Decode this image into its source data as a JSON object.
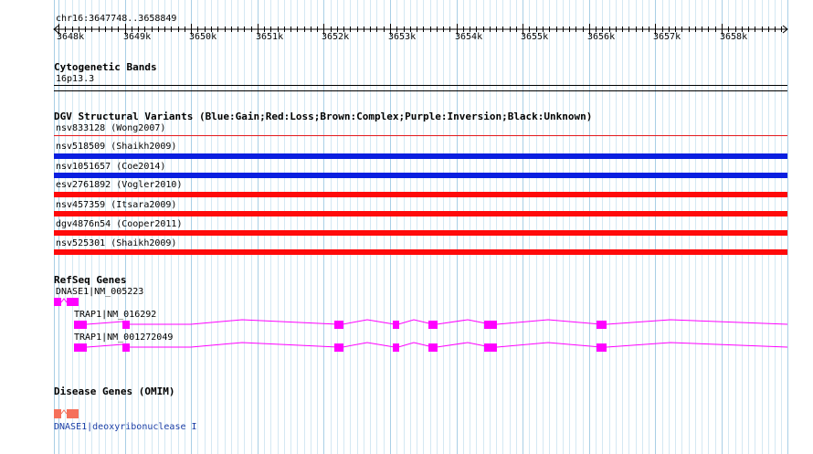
{
  "region": "chr16:3647748..3658849",
  "ruler": {
    "ticks": [
      "3648k",
      "3649k",
      "3650k",
      "3651k",
      "3652k",
      "3653k",
      "3654k",
      "3655k",
      "3656k",
      "3657k",
      "3658k"
    ]
  },
  "cytoband": {
    "title": "Cytogenetic Bands",
    "band": "16p13.3"
  },
  "dgv": {
    "title": "DGV Structural Variants (Blue:Gain;Red:Loss;Brown:Complex;Purple:Inversion;Black:Unknown)",
    "variants": [
      {
        "label": "nsv833128 (Wong2007)",
        "type": "Loss",
        "color": "#e31a1c",
        "thin": true
      },
      {
        "label": "nsv518509 (Shaikh2009)",
        "type": "Gain",
        "color": "#0a1fe0",
        "thin": false
      },
      {
        "label": "nsv1051657 (Coe2014)",
        "type": "Gain",
        "color": "#0a1fe0",
        "thin": false
      },
      {
        "label": "esv2761892 (Vogler2010)",
        "type": "Loss",
        "color": "#ff0a0a",
        "thin": false
      },
      {
        "label": "nsv457359 (Itsara2009)",
        "type": "Loss",
        "color": "#ff0a0a",
        "thin": false
      },
      {
        "label": "dgv4876n54 (Cooper2011)",
        "type": "Loss",
        "color": "#ff0a0a",
        "thin": false
      },
      {
        "label": "nsv525301 (Shaikh2009)",
        "type": "Loss",
        "color": "#ff0a0a",
        "thin": false
      }
    ]
  },
  "refseq": {
    "title": "RefSeq Genes",
    "genes": [
      {
        "label": "DNASE1|NM_005223"
      },
      {
        "label": "TRAP1|NM_016292"
      },
      {
        "label": "TRAP1|NM_001272049"
      }
    ],
    "color": "#ff00ff"
  },
  "omim": {
    "title": "Disease Genes (OMIM)",
    "gene_label": "DNASE1|deoxyribonuclease I",
    "color": "#f5705a"
  }
}
